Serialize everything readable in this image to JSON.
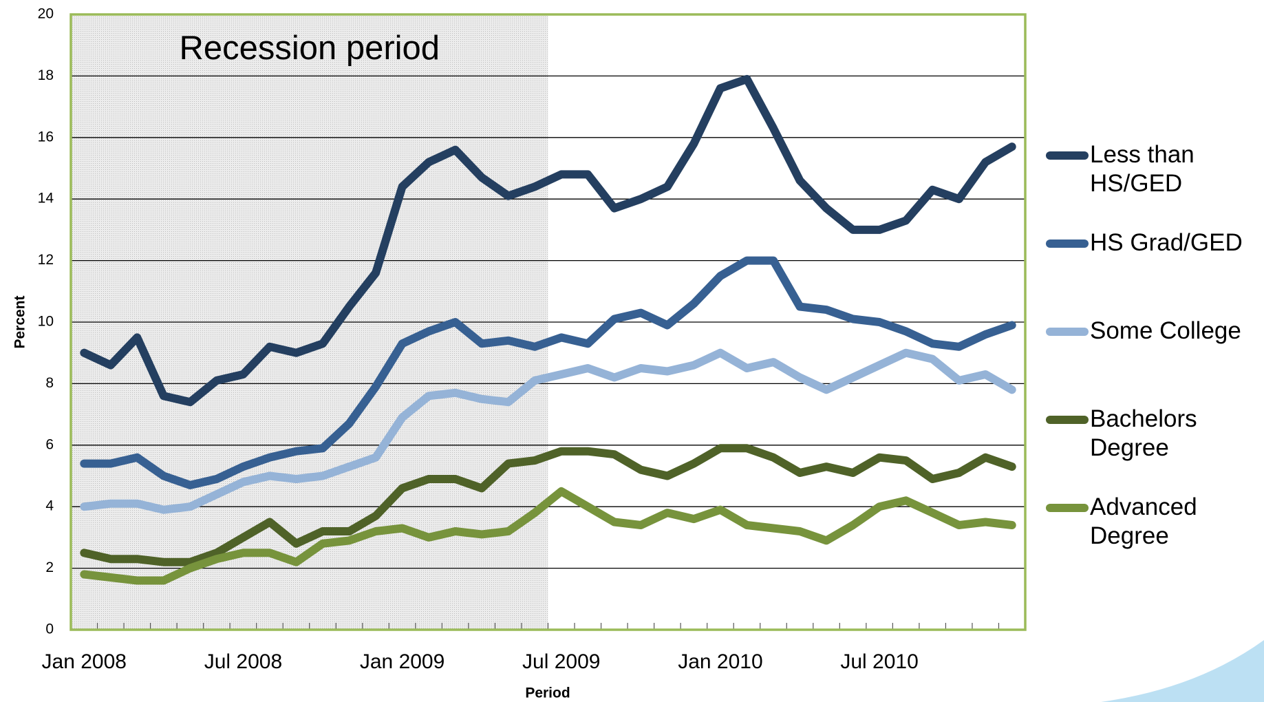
{
  "chart_data": {
    "type": "line",
    "x_label": "Period",
    "y_label": "Percent",
    "categories": [
      "Jan 2008",
      null,
      null,
      null,
      null,
      null,
      "Jul 2008",
      null,
      null,
      null,
      null,
      null,
      "Jan 2009",
      null,
      null,
      null,
      null,
      null,
      "Jul 2009",
      null,
      null,
      null,
      null,
      null,
      "Jan 2010",
      null,
      null,
      null,
      null,
      null,
      "Jul 2010",
      null,
      null,
      null,
      null,
      null
    ],
    "annotation": {
      "text": "Recession period",
      "category_range": [
        0,
        17
      ]
    },
    "series": [
      {
        "name": "Less than HS/GED",
        "color": "#243f60",
        "values": [
          9.0,
          8.6,
          9.5,
          7.6,
          7.4,
          8.1,
          8.3,
          9.2,
          9.0,
          9.3,
          10.5,
          11.6,
          14.4,
          15.2,
          15.6,
          14.7,
          14.1,
          14.4,
          14.8,
          14.8,
          13.7,
          14.0,
          14.4,
          15.8,
          17.6,
          17.9,
          16.3,
          14.6,
          13.7,
          13.0,
          13.0,
          13.3,
          14.3,
          14.0,
          15.2,
          15.7
        ]
      },
      {
        "name": "HS Grad/GED",
        "color": "#376092",
        "values": [
          5.4,
          5.4,
          5.6,
          5.0,
          4.7,
          4.9,
          5.3,
          5.6,
          5.8,
          5.9,
          6.7,
          7.9,
          9.3,
          9.7,
          10.0,
          9.3,
          9.4,
          9.2,
          9.5,
          9.3,
          10.1,
          10.3,
          9.9,
          10.6,
          11.5,
          12.0,
          12.0,
          10.5,
          10.4,
          10.1,
          10.0,
          9.7,
          9.3,
          9.2,
          9.6,
          9.9
        ]
      },
      {
        "name": "Some College",
        "color": "#95b3d7",
        "values": [
          4.0,
          4.1,
          4.1,
          3.9,
          4.0,
          4.4,
          4.8,
          5.0,
          4.9,
          5.0,
          5.3,
          5.6,
          6.9,
          7.6,
          7.7,
          7.5,
          7.4,
          8.1,
          8.3,
          8.5,
          8.2,
          8.5,
          8.4,
          8.6,
          9.0,
          8.5,
          8.7,
          8.2,
          7.8,
          8.2,
          8.6,
          9.0,
          8.8,
          8.1,
          8.3,
          7.8
        ]
      },
      {
        "name": "Bachelors Degree",
        "color": "#4f6228",
        "values": [
          2.5,
          2.3,
          2.3,
          2.2,
          2.2,
          2.5,
          3.0,
          3.5,
          2.8,
          3.2,
          3.2,
          3.7,
          4.6,
          4.9,
          4.9,
          4.6,
          5.4,
          5.5,
          5.8,
          5.8,
          5.7,
          5.2,
          5.0,
          5.4,
          5.9,
          5.9,
          5.6,
          5.1,
          5.3,
          5.1,
          5.6,
          5.5,
          4.9,
          5.1,
          5.6,
          5.3
        ]
      },
      {
        "name": "Advanced Degree",
        "color": "#77933c",
        "values": [
          1.8,
          1.7,
          1.6,
          1.6,
          2.0,
          2.3,
          2.5,
          2.5,
          2.2,
          2.8,
          2.9,
          3.2,
          3.3,
          3.0,
          3.2,
          3.1,
          3.2,
          3.8,
          4.5,
          4.0,
          3.5,
          3.4,
          3.8,
          3.6,
          3.9,
          3.4,
          3.3,
          3.2,
          2.9,
          3.4,
          4.0,
          4.2,
          3.8,
          3.4,
          3.5,
          3.4
        ]
      }
    ],
    "ylim": [
      0,
      20
    ],
    "yticks": [
      0,
      2,
      4,
      6,
      8,
      10,
      12,
      14,
      16,
      18,
      20
    ],
    "grid": true,
    "legend": "right"
  }
}
